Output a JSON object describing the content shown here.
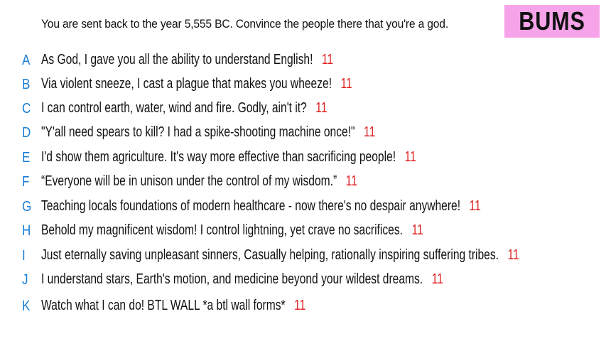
{
  "prompt": "You are sent back to the year 5,555 BC. Convince the people there that you're a god.",
  "badge": "BUMS",
  "colors": {
    "letter": "#1a7cd6",
    "score": "#e02020",
    "badge_bg": "#f6a3ea"
  },
  "answers": [
    {
      "letter": "A",
      "text": "As God, I gave you all the ability to understand English!",
      "score": "11"
    },
    {
      "letter": "B",
      "text": "Via violent sneeze, I cast a plague that makes you wheeze!",
      "score": "11"
    },
    {
      "letter": "C",
      "text": "I can control earth, water, wind and fire. Godly, ain't it?",
      "score": "11"
    },
    {
      "letter": "D",
      "text": "\"Y'all need spears to kill? I had a spike-shooting machine once!\"",
      "score": "11"
    },
    {
      "letter": "E",
      "text": "I'd show them agriculture. It's way more effective than sacrificing people!",
      "score": "11"
    },
    {
      "letter": "F",
      "text": "“Everyone will be in unison under the control of my wisdom.”",
      "score": "11"
    },
    {
      "letter": "G",
      "text": "Teaching locals foundations of modern healthcare - now there's no despair anywhere!",
      "score": "11"
    },
    {
      "letter": "H",
      "text": "Behold my magnificent wisdom! I control lightning, yet crave no sacrifices.",
      "score": "11"
    },
    {
      "letter": "I",
      "text": "Just eternally saving unpleasant sinners, Casually helping, rationally inspiring suffering tribes.",
      "score": "11"
    },
    {
      "letter": "J",
      "text": "I understand stars, Earth's motion, and medicine beyond your wildest dreams.",
      "score": "11"
    },
    {
      "letter": "K",
      "text": "Watch what I can do! BTL WALL *a btl wall forms*",
      "score": "11"
    }
  ]
}
